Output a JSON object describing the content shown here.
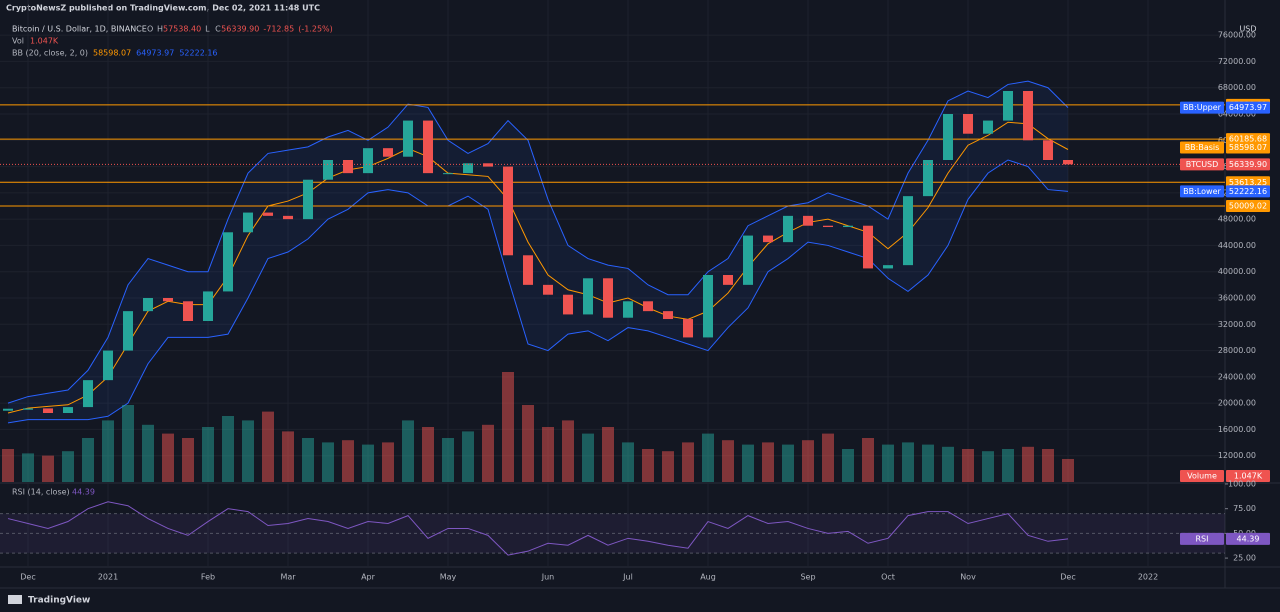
{
  "header": {
    "publisher": "CryptoNewsZ published on TradingView.com, Dec 02, 2021 11:48 UTC",
    "brand": "TradingView"
  },
  "chart_data": [
    {
      "type": "candlestick",
      "symbol": "Bitcoin / U.S. Dollar, 1D, BINANCE",
      "ohlc": [
        {
          "key": "O",
          "value": 57232.93
        },
        {
          "key": "H",
          "value": 57538.4,
          "label": "57538.40"
        },
        {
          "key": "L",
          "value": 55758.04
        },
        {
          "key": "C",
          "value": 56339.9,
          "label": "56339.90"
        }
      ],
      "change": -712.85,
      "change_pct": {
        "value": -1.25,
        "label": "(-1.25%)"
      },
      "currency": "USD",
      "categories": [
        null,
        "Dec",
        null,
        null,
        null,
        "2021",
        null,
        null,
        null,
        null,
        "Feb",
        null,
        null,
        null,
        "Mar",
        null,
        null,
        null,
        "Apr",
        null,
        null,
        null,
        "May",
        null,
        null,
        null,
        null,
        "Jun",
        null,
        null,
        null,
        "Jul",
        null,
        null,
        null,
        "Aug",
        null,
        null,
        null,
        null,
        "Sep",
        null,
        null,
        null,
        "Oct",
        null,
        null,
        null,
        "Nov",
        null,
        null,
        null,
        null,
        "Dec",
        null,
        null,
        null,
        "2022",
        null,
        null,
        null
      ],
      "series": [
        {
          "name": "BTCUSD",
          "color": "#ef5350",
          "up_color": "#26a69a",
          "values": [
            19000,
            19200,
            18500,
            19400,
            23500,
            28000,
            34000,
            36000,
            35500,
            32500,
            37000,
            46000,
            49000,
            48500,
            48000,
            54000,
            57000,
            55000,
            58800,
            57500,
            63000,
            55000,
            55000,
            56500,
            56000,
            42500,
            38000,
            36500,
            33500,
            39000,
            33000,
            35500,
            34000,
            32800,
            30000,
            39500,
            38000,
            45500,
            44500,
            48500,
            47000,
            46800,
            47000,
            40500,
            41000,
            51500,
            57000,
            64000,
            61000,
            63000,
            67500,
            60000,
            57000,
            56339.9,
            null,
            null,
            null,
            null,
            null,
            null,
            null
          ]
        }
      ],
      "bb": {
        "title": "BB (20, close, 2, 0)",
        "fill": "#2962ff",
        "series": [
          {
            "name": "BB:Basis",
            "color": "#ff9800",
            "values": [
              18500,
              19250,
              19500,
              19750,
              21250,
              24000,
              29000,
              34000,
              35500,
              35000,
              35000,
              39250,
              45500,
              50000,
              50750,
              52000,
              54250,
              55500,
              56000,
              57250,
              58750,
              57500,
              55000,
              54750,
              54500,
              51000,
              44500,
              39500,
              37250,
              36500,
              35250,
              36000,
              34500,
              33250,
              32750,
              34000,
              36750,
              40750,
              44250,
              46000,
              47500,
              48000,
              47000,
              46000,
              43500,
              46000,
              49750,
              55000,
              59250,
              60750,
              62750,
              62500,
              60250,
              58598.07,
              null,
              null,
              null,
              null,
              null,
              null,
              null
            ]
          },
          {
            "name": "BB:Upper",
            "color": "#2962ff",
            "values": [
              20000,
              21000,
              21500,
              22000,
              25000,
              30000,
              38000,
              42000,
              41000,
              40000,
              40000,
              48000,
              55000,
              58000,
              58500,
              59000,
              60500,
              61500,
              60000,
              62000,
              65500,
              65000,
              60000,
              58000,
              59500,
              63000,
              60000,
              51000,
              44000,
              42000,
              41000,
              40500,
              38000,
              36500,
              36500,
              40000,
              42000,
              47000,
              48500,
              50000,
              50500,
              52000,
              51000,
              50000,
              48000,
              55000,
              60000,
              66000,
              67500,
              66500,
              68500,
              69000,
              68000,
              64973.97,
              null,
              null,
              null,
              null,
              null,
              null,
              null
            ]
          },
          {
            "name": "BB:Lower",
            "color": "#2962ff",
            "values": [
              17000,
              17500,
              17500,
              17500,
              17500,
              18000,
              20000,
              26000,
              30000,
              30000,
              30000,
              30500,
              36000,
              42000,
              43000,
              45000,
              48000,
              49500,
              52000,
              52500,
              52000,
              50000,
              50000,
              51500,
              49500,
              39000,
              29000,
              28000,
              30500,
              31000,
              29500,
              31500,
              31000,
              30000,
              29000,
              28000,
              31500,
              34500,
              40000,
              42000,
              44500,
              44000,
              43000,
              42000,
              39000,
              37000,
              39500,
              44000,
              51000,
              55000,
              57000,
              56000,
              52500,
              52222.16,
              null,
              null,
              null,
              null,
              null,
              null,
              null
            ]
          }
        ]
      },
      "volume": {
        "legend_name": "Vol",
        "tag_name": "Volume",
        "last_label": "1.047K",
        "values": [
          1500,
          1300,
          1200,
          1400,
          2000,
          2800,
          3500,
          2600,
          2200,
          2000,
          2500,
          3000,
          2800,
          3200,
          2300,
          2000,
          1800,
          1900,
          1700,
          1800,
          2800,
          2500,
          2000,
          2300,
          2600,
          5000,
          3500,
          2500,
          2800,
          2200,
          2500,
          1800,
          1500,
          1400,
          1800,
          2200,
          1900,
          1700,
          1800,
          1700,
          1900,
          2200,
          1500,
          2000,
          1700,
          1800,
          1700,
          1600,
          1500,
          1400,
          1500,
          1600,
          1500,
          1047,
          null,
          null,
          null,
          null,
          null,
          null,
          null
        ]
      },
      "levels": [
        65380.01,
        60185.68,
        53613.25,
        50009.02
      ],
      "level_color": "#ff9800",
      "ylim": [
        8000,
        78000
      ],
      "yticks": [
        {
          "value": 12000,
          "label": "12000.00"
        },
        {
          "value": 16000,
          "label": "16000.00"
        },
        {
          "value": 20000,
          "label": "20000.00"
        },
        {
          "value": 24000,
          "label": "24000.00"
        },
        {
          "value": 28000,
          "label": "28000.00"
        },
        {
          "value": 32000,
          "label": "32000.00"
        },
        {
          "value": 36000,
          "label": "36000.00"
        },
        {
          "value": 40000,
          "label": "40000.00"
        },
        {
          "value": 44000,
          "label": "44000.00"
        },
        {
          "value": 48000,
          "label": "48000.00"
        },
        {
          "value": 52000,
          "label": "52000.00"
        },
        {
          "value": 56000,
          "label": "56000.00"
        },
        {
          "value": 60000,
          "label": "60000.00"
        },
        {
          "value": 64000,
          "label": "64000.00"
        },
        {
          "value": 68000,
          "label": "68000.00"
        },
        {
          "value": 72000,
          "label": "72000.00"
        },
        {
          "value": 76000,
          "label": "76000.00"
        }
      ],
      "grid": true
    },
    {
      "type": "line",
      "title": "RSI (14, close)",
      "series": [
        {
          "name": "RSI",
          "color": "#7e57c2",
          "values": [
            65,
            60,
            55,
            62,
            75,
            82,
            78,
            65,
            55,
            48,
            62,
            75,
            72,
            58,
            60,
            65,
            62,
            55,
            62,
            60,
            68,
            45,
            55,
            55,
            48,
            28,
            32,
            40,
            38,
            48,
            38,
            45,
            42,
            38,
            35,
            62,
            55,
            68,
            60,
            62,
            55,
            50,
            52,
            40,
            45,
            68,
            72,
            72,
            60,
            65,
            70,
            48,
            42,
            44.39,
            null,
            null,
            null,
            null,
            null,
            null,
            null
          ]
        }
      ],
      "bands": [
        70,
        50,
        30
      ],
      "ylim": [
        17,
        102
      ],
      "yticks": [
        {
          "value": 25,
          "label": "25.00"
        },
        {
          "value": 50,
          "label": "50.00"
        },
        {
          "value": 75,
          "label": "75.00"
        },
        {
          "value": 100,
          "label": "100.00"
        }
      ]
    }
  ]
}
